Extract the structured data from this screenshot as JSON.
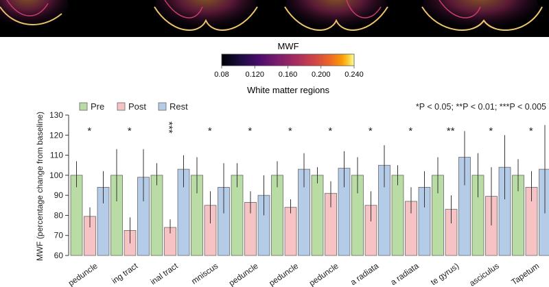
{
  "colors": {
    "pre": "#b9dca4",
    "post": "#f6c2c3",
    "rest": "#b5cce9",
    "outline": "#555555",
    "brain_bg": "#000000"
  },
  "colorbar": {
    "title": "MWF",
    "ticks": [
      "0.08",
      "0.120",
      "0.160",
      "0.200",
      "0.240"
    ],
    "label": "White matter regions",
    "colormap": "inferno"
  },
  "legend": {
    "items": [
      {
        "label": "Pre",
        "color": "#b9dca4"
      },
      {
        "label": "Post",
        "color": "#f6c2c3"
      },
      {
        "label": "Rest",
        "color": "#b5cce9"
      }
    ]
  },
  "significance_note": "*P < 0.05; **P < 0.01; ***P < 0.005",
  "chart_data": {
    "type": "bar",
    "ylabel": "MWF (percentage change from baseline)",
    "ylim": [
      60,
      130
    ],
    "yticks": [
      60,
      70,
      80,
      90,
      100,
      110,
      120,
      130
    ],
    "grid": false,
    "legend_position": "top-left",
    "categories": [
      "peduncle",
      "ing tract",
      "inal tract",
      "mniscus",
      "peduncle",
      "peduncle",
      "peduncle",
      "a radiata",
      "a radiata",
      "te gyrus)",
      "asciculus",
      "Tapetum"
    ],
    "series": [
      {
        "name": "Pre",
        "values": [
          100,
          100,
          100,
          100,
          100,
          100,
          100,
          100,
          100,
          100,
          100,
          100
        ],
        "err_low": [
          94,
          87,
          95,
          91,
          94,
          94,
          96,
          91,
          95,
          91,
          89,
          92
        ],
        "err_high": [
          107,
          113,
          106,
          109,
          106,
          107,
          104,
          109,
          105,
          109,
          111,
          108
        ]
      },
      {
        "name": "Post",
        "values": [
          79.5,
          72.5,
          74,
          85,
          86.5,
          84,
          91,
          85,
          87,
          83,
          89.5,
          94
        ],
        "err_low": [
          74,
          66,
          71,
          76,
          81,
          81,
          84,
          77,
          81,
          76,
          75,
          87
        ],
        "err_high": [
          84,
          79,
          78,
          92,
          92,
          88,
          97,
          92,
          94,
          90,
          104,
          102
        ]
      },
      {
        "name": "Rest",
        "values": [
          94,
          99,
          103,
          94,
          90,
          103,
          103.5,
          105,
          94,
          109,
          104,
          103
        ],
        "err_low": [
          86,
          87,
          94,
          81,
          80,
          94,
          94,
          94,
          84,
          95,
          88,
          81
        ],
        "err_high": [
          102,
          113,
          110,
          106,
          100,
          111,
          112,
          115,
          102,
          122,
          120,
          125
        ]
      }
    ],
    "significance": [
      "*",
      "*",
      "***",
      "*",
      "*",
      "*",
      "*",
      "*",
      "*",
      "**",
      "*",
      "*"
    ]
  }
}
